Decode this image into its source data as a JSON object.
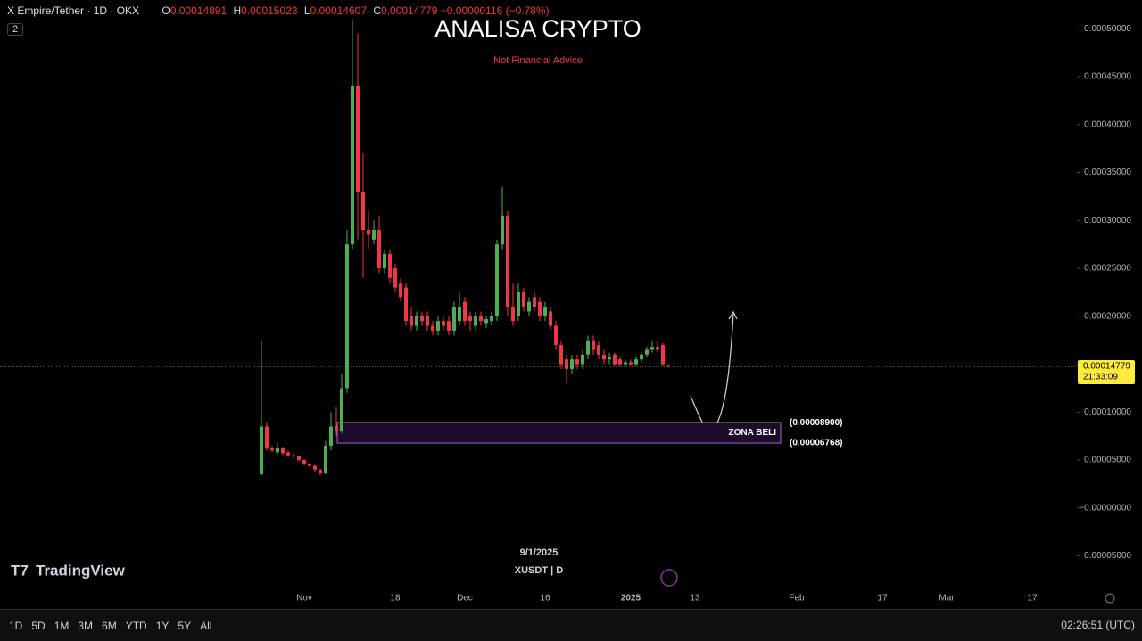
{
  "header": {
    "symbol": "X Empire/Tether · 1D · OKX",
    "labels": [
      "O",
      "H",
      "L",
      "C"
    ],
    "change": "−0.00000116 (−0.78%)",
    "indicator_count": 2
  },
  "logo": "TradingView",
  "footer": {
    "timeframes": [
      "1D",
      "5D",
      "1M",
      "3M",
      "6M",
      "YTD",
      "1Y",
      "5Y",
      "All"
    ],
    "clock": "02:26:51 (UTC)"
  },
  "chart_data": {
    "type": "candlestick",
    "title": "ANALISA CRYPTO",
    "subtitle": "Not Financial Advice",
    "watermark_date": "9/1/2025",
    "watermark_symbol": "XUSDT | D",
    "up_color": "#4caf50",
    "down_color": "#f23645",
    "x": [
      0,
      1,
      2,
      3,
      4,
      5,
      6,
      7,
      8,
      9,
      10,
      11,
      12,
      13,
      14,
      15,
      16,
      17,
      18,
      19,
      20,
      21,
      22,
      23,
      24,
      25,
      26,
      27,
      28,
      29,
      30,
      31,
      32,
      33,
      34,
      35,
      36,
      37,
      38,
      39,
      40,
      41,
      42,
      43,
      44,
      45,
      46,
      47,
      48,
      49,
      50,
      51,
      52,
      53,
      54,
      55,
      56,
      57,
      58,
      59,
      60,
      61,
      62,
      63,
      64,
      65,
      66,
      67,
      68,
      69,
      70,
      71,
      72,
      73,
      74,
      75,
      76
    ],
    "open": [
      3.5e-05,
      8.5e-05,
      6.2e-05,
      5.8e-05,
      6.3e-05,
      5.8e-05,
      5.5e-05,
      5.4e-05,
      5e-05,
      4.6e-05,
      4.4e-05,
      4e-05,
      3.7e-05,
      6.5e-05,
      8.5e-05,
      8e-05,
      0.000125,
      0.000275,
      0.00044,
      0.00033,
      0.00029,
      0.00028,
      0.00029,
      0.00025,
      0.000265,
      0.00025,
      0.000235,
      0.00023,
      0.0002,
      0.00019,
      0.0002,
      0.0002,
      0.00019,
      0.000185,
      0.000195,
      0.000195,
      0.000185,
      0.000195,
      0.000215,
      0.0002,
      0.00019,
      0.0002,
      0.000193,
      0.000195,
      0.0002,
      0.000275,
      0.000305,
      0.00021,
      0.0002,
      0.000225,
      0.000205,
      0.00022,
      0.000215,
      0.0002,
      0.000205,
      0.00019,
      0.00017,
      0.000155,
      0.000145,
      0.000155,
      0.00015,
      0.00016,
      0.000175,
      0.00017,
      0.00016,
      0.000155,
      0.00016,
      0.000155,
      0.00015,
      0.000152,
      0.00015,
      0.000155,
      0.00016,
      0.000165,
      0.000168,
      0.00017,
      0.00014891
    ],
    "high": [
      0.000175,
      9e-05,
      6.5e-05,
      6.8e-05,
      6.4e-05,
      6e-05,
      5.7e-05,
      5.5e-05,
      5.1e-05,
      4.7e-05,
      4.5e-05,
      4.1e-05,
      7e-05,
      0.0001,
      0.000105,
      0.00014,
      0.00029,
      0.00051,
      0.000495,
      0.00037,
      0.00031,
      0.0003,
      0.000305,
      0.00027,
      0.00027,
      0.000255,
      0.00024,
      0.000235,
      0.00021,
      0.000205,
      0.000205,
      0.000205,
      0.000195,
      0.0002,
      0.0002,
      0.0002,
      0.000215,
      0.000225,
      0.00022,
      0.000205,
      0.000205,
      0.000205,
      0.0002,
      0.000205,
      0.00028,
      0.000335,
      0.00031,
      0.000235,
      0.000235,
      0.00023,
      0.00022,
      0.000225,
      0.00022,
      0.000215,
      0.00021,
      0.000195,
      0.000175,
      0.00016,
      0.00016,
      0.00016,
      0.000165,
      0.00018,
      0.00018,
      0.000175,
      0.000165,
      0.000162,
      0.000162,
      0.000158,
      0.000155,
      0.000155,
      0.000158,
      0.000162,
      0.000168,
      0.000175,
      0.000175,
      0.000172,
      0.00015023
    ],
    "low": [
      3.5e-05,
      6e-05,
      5.8e-05,
      5.6e-05,
      5.5e-05,
      5.3e-05,
      5.2e-05,
      4.8e-05,
      4.4e-05,
      4.2e-05,
      3.8e-05,
      3.4e-05,
      3.5e-05,
      6e-05,
      7.5e-05,
      7.8e-05,
      0.00012,
      0.00027,
      0.00028,
      0.00024,
      0.00027,
      0.000275,
      0.000245,
      0.000245,
      0.000235,
      0.000225,
      0.000215,
      0.00019,
      0.000185,
      0.000185,
      0.00019,
      0.000185,
      0.00018,
      0.00018,
      0.000185,
      0.00018,
      0.00018,
      0.00019,
      0.00019,
      0.000185,
      0.000185,
      0.00019,
      0.000188,
      0.00019,
      0.000195,
      0.00027,
      0.0002,
      0.00019,
      0.000195,
      0.000205,
      0.0002,
      0.000205,
      0.000195,
      0.000195,
      0.000185,
      0.000165,
      0.000145,
      0.00013,
      0.00014,
      0.000145,
      0.000145,
      0.000155,
      0.00016,
      0.000155,
      0.00015,
      0.00015,
      0.000148,
      0.000148,
      0.000148,
      0.000148,
      0.000148,
      0.000152,
      0.000158,
      0.000162,
      0.000162,
      0.000148,
      0.00014607
    ],
    "close": [
      8.5e-05,
      6.2e-05,
      6e-05,
      6.3e-05,
      5.7e-05,
      5.5e-05,
      5.4e-05,
      5e-05,
      4.6e-05,
      4.4e-05,
      4e-05,
      3.7e-05,
      6.5e-05,
      8.5e-05,
      8e-05,
      0.000125,
      0.000275,
      0.00044,
      0.00033,
      0.00029,
      0.000285,
      0.00029,
      0.00025,
      0.000265,
      0.00024,
      0.00023,
      0.00022,
      0.000195,
      0.00019,
      0.0002,
      0.000195,
      0.00019,
      0.000185,
      0.000195,
      0.00019,
      0.000185,
      0.00021,
      0.00021,
      0.000195,
      0.000195,
      0.0002,
      0.000195,
      0.000197,
      0.0002,
      0.000275,
      0.000305,
      0.00021,
      0.000195,
      0.000225,
      0.00021,
      0.000215,
      0.00021,
      0.0002,
      0.00021,
      0.00019,
      0.00017,
      0.00015,
      0.000145,
      0.000155,
      0.00015,
      0.00016,
      0.000175,
      0.000165,
      0.00016,
      0.000155,
      0.000158,
      0.00015,
      0.00015,
      0.000152,
      0.00015,
      0.000155,
      0.00016,
      0.000165,
      0.000168,
      0.000165,
      0.00015,
      0.00014779
    ],
    "countdown": "21:33:09",
    "xlim": [
      -48.83,
      152
    ],
    "xticks": [
      {
        "value": 8,
        "label": "Nov"
      },
      {
        "value": 25,
        "label": "18"
      },
      {
        "value": 38,
        "label": "Dec"
      },
      {
        "value": 53,
        "label": "16"
      },
      {
        "value": 69,
        "label": "2025"
      },
      {
        "value": 81,
        "label": "13"
      },
      {
        "value": 100,
        "label": "Feb"
      },
      {
        "value": 116,
        "label": "17"
      },
      {
        "value": 128,
        "label": "Mar"
      },
      {
        "value": 144,
        "label": "17"
      }
    ],
    "ylim": [
      -8.2e-05,
      0.00053
    ],
    "yticks": [
      {
        "value": -5e-05,
        "label": "−0.00005000"
      },
      {
        "value": 0,
        "label": "−0.00000000"
      },
      {
        "value": 5e-05,
        "label": "0.00005000"
      },
      {
        "value": 0.0001,
        "label": "0.00010000"
      },
      {
        "value": 0.00015,
        "label": "0.00015000"
      },
      {
        "value": 0.0002,
        "label": "0.00020000"
      },
      {
        "value": 0.00025,
        "label": "0.00025000"
      },
      {
        "value": 0.0003,
        "label": "0.00030000"
      },
      {
        "value": 0.00035,
        "label": "0.00035000"
      },
      {
        "value": 0.0004,
        "label": "0.00040000"
      },
      {
        "value": 0.00045,
        "label": "0.00045000"
      },
      {
        "value": 0.0005,
        "label": "0.00050000"
      }
    ],
    "zone": {
      "label": "ZONA BELI",
      "top": {
        "value": 8.9e-05,
        "label": "(0.00008900)"
      },
      "bottom": {
        "value": 6.768e-05,
        "label": "(0.00006768)"
      },
      "color": "#9c6bd6"
    }
  }
}
